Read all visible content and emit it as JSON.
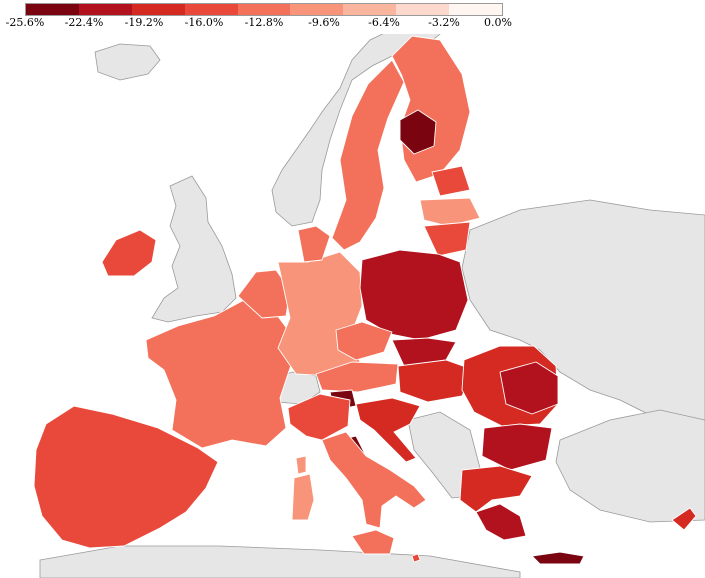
{
  "legend": {
    "colors": [
      "#7a0510",
      "#b2121d",
      "#d42a22",
      "#e9493a",
      "#f3705a",
      "#f89479",
      "#fab59e",
      "#fdd8cc",
      "#fff5f1"
    ],
    "tick_labels": [
      "-25.6%",
      "-22.4%",
      "-19.2%",
      "-16.0%",
      "-12.8%",
      "-9.6%",
      "-6.4%",
      "-3.2%",
      "0.0%"
    ]
  },
  "palette": {
    "sea": "#ffffff",
    "non_eu_land": "#e6e6e6",
    "border": "#8c8c8c",
    "region_border": "#f4d0c4"
  },
  "regions": [
    {
      "name": "Ireland",
      "shade": 3
    },
    {
      "name": "Iberia",
      "shade": 3
    },
    {
      "name": "France",
      "shade": 4
    },
    {
      "name": "Benelux",
      "shade": 4
    },
    {
      "name": "Germany",
      "shade": 5
    },
    {
      "name": "Denmark",
      "shade": 4
    },
    {
      "name": "Sweden",
      "shade": 4
    },
    {
      "name": "Finland",
      "shade": 4
    },
    {
      "name": "Finland east",
      "shade": 0
    },
    {
      "name": "Estonia",
      "shade": 3
    },
    {
      "name": "Latvia",
      "shade": 5
    },
    {
      "name": "Lithuania",
      "shade": 3
    },
    {
      "name": "Poland",
      "shade": 1
    },
    {
      "name": "Czechia",
      "shade": 4
    },
    {
      "name": "Slovakia",
      "shade": 1
    },
    {
      "name": "Austria",
      "shade": 4
    },
    {
      "name": "Hungary",
      "shade": 2
    },
    {
      "name": "Romania",
      "shade": 2
    },
    {
      "name": "Romania north-east",
      "shade": 1
    },
    {
      "name": "Bulgaria",
      "shade": 1
    },
    {
      "name": "Slovenia",
      "shade": 0
    },
    {
      "name": "Croatia",
      "shade": 2
    },
    {
      "name": "Italy",
      "shade": 3
    },
    {
      "name": "Italy centre",
      "shade": 0
    },
    {
      "name": "Italy south",
      "shade": 4
    },
    {
      "name": "Sardinia",
      "shade": 5
    },
    {
      "name": "Corsica",
      "shade": 5
    },
    {
      "name": "Sicily",
      "shade": 4
    },
    {
      "name": "Greece",
      "shade": 2
    },
    {
      "name": "Greece south",
      "shade": 1
    },
    {
      "name": "Crete",
      "shade": 0
    },
    {
      "name": "Cyprus",
      "shade": 2
    },
    {
      "name": "Malta",
      "shade": 3
    }
  ]
}
